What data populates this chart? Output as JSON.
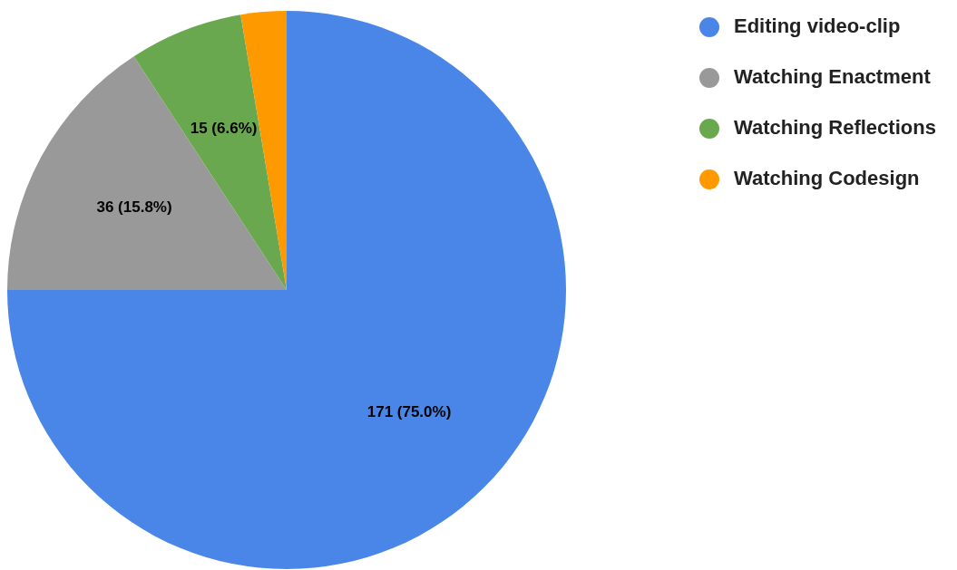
{
  "chart_data": {
    "type": "pie",
    "categories": [
      "Editing video-clip",
      "Watching Enactment",
      "Watching Reflections",
      "Watching Codesign"
    ],
    "values": [
      171,
      36,
      15,
      6
    ],
    "colors": [
      "#4a86e8",
      "#999999",
      "#6aa84f",
      "#ff9900"
    ],
    "value_labels": [
      "171 (75.0%)",
      "36 (15.8%)",
      "15 (6.6%)",
      null
    ],
    "legend": "top right"
  }
}
